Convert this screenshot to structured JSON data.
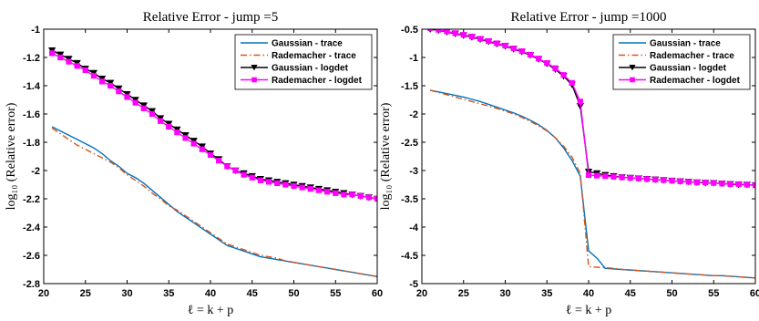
{
  "chart_data": [
    {
      "type": "line",
      "title": "Relative Error - jump =5",
      "xlabel": "ℓ = k + p",
      "ylabel": "log₁₀ (Relative error)",
      "xlim": [
        20,
        60
      ],
      "ylim": [
        -2.8,
        -1
      ],
      "xticks": [
        20,
        25,
        30,
        35,
        40,
        45,
        50,
        55,
        60
      ],
      "xtick_labels": [
        "20",
        "25",
        "30",
        "35",
        "40",
        "45",
        "50",
        "55",
        "60"
      ],
      "yticks": [
        -1,
        -1.2,
        -1.4,
        -1.6,
        -1.8,
        -2,
        -2.2,
        -2.4,
        -2.6,
        -2.8
      ],
      "ytick_labels": [
        "-1",
        "-1.2",
        "-1.4",
        "-1.6",
        "-1.8",
        "-2",
        "-2.2",
        "-2.4",
        "-2.6",
        "-2.8"
      ],
      "grid": false,
      "legend": "top-right",
      "series": [
        {
          "name": "Gaussian - trace",
          "color": "#0072BD",
          "style": "solid",
          "marker": "none",
          "x": [
            21,
            22,
            23,
            24,
            25,
            26,
            27,
            28,
            29,
            30,
            31,
            32,
            33,
            34,
            35,
            36,
            37,
            38,
            39,
            40,
            41,
            42,
            43,
            44,
            45,
            46,
            47,
            48,
            49,
            50,
            51,
            52,
            53,
            54,
            55,
            56,
            57,
            58,
            59,
            60
          ],
          "y": [
            -1.69,
            -1.72,
            -1.75,
            -1.78,
            -1.81,
            -1.84,
            -1.88,
            -1.93,
            -1.97,
            -2.02,
            -2.05,
            -2.09,
            -2.14,
            -2.19,
            -2.24,
            -2.29,
            -2.33,
            -2.37,
            -2.41,
            -2.45,
            -2.49,
            -2.53,
            -2.55,
            -2.57,
            -2.59,
            -2.61,
            -2.62,
            -2.63,
            -2.64,
            -2.65,
            -2.66,
            -2.67,
            -2.68,
            -2.69,
            -2.7,
            -2.71,
            -2.72,
            -2.73,
            -2.74,
            -2.75
          ]
        },
        {
          "name": "Rademacher - trace",
          "color": "#D95319",
          "style": "dashdot",
          "marker": "none",
          "x": [
            21,
            22,
            23,
            24,
            25,
            26,
            27,
            28,
            29,
            30,
            31,
            32,
            33,
            34,
            35,
            36,
            37,
            38,
            39,
            40,
            41,
            42,
            43,
            44,
            45,
            46,
            47,
            48,
            49,
            50,
            51,
            52,
            53,
            54,
            55,
            56,
            57,
            58,
            59,
            60
          ],
          "y": [
            -1.7,
            -1.74,
            -1.78,
            -1.82,
            -1.85,
            -1.88,
            -1.91,
            -1.94,
            -1.98,
            -2.03,
            -2.07,
            -2.11,
            -2.16,
            -2.2,
            -2.25,
            -2.28,
            -2.32,
            -2.36,
            -2.4,
            -2.44,
            -2.48,
            -2.52,
            -2.54,
            -2.56,
            -2.58,
            -2.6,
            -2.61,
            -2.62,
            -2.64,
            -2.65,
            -2.66,
            -2.67,
            -2.68,
            -2.69,
            -2.7,
            -2.71,
            -2.72,
            -2.73,
            -2.74,
            -2.75
          ]
        },
        {
          "name": "Gaussian - logdet",
          "color": "#000000",
          "style": "solid",
          "marker": "triangle-down",
          "x": [
            21,
            22,
            23,
            24,
            25,
            26,
            27,
            28,
            29,
            30,
            31,
            32,
            33,
            34,
            35,
            36,
            37,
            38,
            39,
            40,
            41,
            42,
            43,
            44,
            45,
            46,
            47,
            48,
            49,
            50,
            51,
            52,
            53,
            54,
            55,
            56,
            57,
            58,
            59,
            60
          ],
          "y": [
            -1.15,
            -1.18,
            -1.21,
            -1.24,
            -1.28,
            -1.31,
            -1.35,
            -1.38,
            -1.42,
            -1.46,
            -1.5,
            -1.54,
            -1.58,
            -1.63,
            -1.67,
            -1.71,
            -1.75,
            -1.79,
            -1.83,
            -1.88,
            -1.92,
            -1.97,
            -2.0,
            -2.02,
            -2.04,
            -2.06,
            -2.07,
            -2.08,
            -2.09,
            -2.1,
            -2.11,
            -2.12,
            -2.13,
            -2.14,
            -2.15,
            -2.16,
            -2.17,
            -2.18,
            -2.19,
            -2.2
          ]
        },
        {
          "name": "Rademacher - logdet",
          "color": "#FF00FF",
          "style": "solid",
          "marker": "square",
          "x": [
            21,
            22,
            23,
            24,
            25,
            26,
            27,
            28,
            29,
            30,
            31,
            32,
            33,
            34,
            35,
            36,
            37,
            38,
            39,
            40,
            41,
            42,
            43,
            44,
            45,
            46,
            47,
            48,
            49,
            50,
            51,
            52,
            53,
            54,
            55,
            56,
            57,
            58,
            59,
            60
          ],
          "y": [
            -1.17,
            -1.2,
            -1.23,
            -1.26,
            -1.29,
            -1.33,
            -1.37,
            -1.4,
            -1.44,
            -1.48,
            -1.52,
            -1.56,
            -1.6,
            -1.65,
            -1.69,
            -1.73,
            -1.77,
            -1.81,
            -1.85,
            -1.89,
            -1.93,
            -1.97,
            -2.0,
            -2.03,
            -2.05,
            -2.07,
            -2.08,
            -2.09,
            -2.1,
            -2.11,
            -2.12,
            -2.13,
            -2.14,
            -2.15,
            -2.16,
            -2.17,
            -2.17,
            -2.18,
            -2.19,
            -2.2
          ]
        }
      ]
    },
    {
      "type": "line",
      "title": "Relative Error - jump =1000",
      "xlabel": "ℓ = k + p",
      "ylabel": "log₁₀ (Relative error)",
      "xlim": [
        20,
        60
      ],
      "ylim": [
        -5,
        -0.5
      ],
      "xticks": [
        20,
        25,
        30,
        35,
        40,
        45,
        50,
        55,
        60
      ],
      "xtick_labels": [
        "20",
        "25",
        "30",
        "35",
        "40",
        "45",
        "50",
        "55",
        "60"
      ],
      "yticks": [
        -0.5,
        -1,
        -1.5,
        -2,
        -2.5,
        -3,
        -3.5,
        -4,
        -4.5,
        -5
      ],
      "ytick_labels": [
        "-0.5",
        "-1",
        "-1.5",
        "-2",
        "-2.5",
        "-3",
        "-3.5",
        "-4",
        "-4.5",
        "-5"
      ],
      "grid": false,
      "legend": "top-right",
      "series": [
        {
          "name": "Gaussian - trace",
          "color": "#0072BD",
          "style": "solid",
          "marker": "none",
          "x": [
            21,
            22,
            23,
            24,
            25,
            26,
            27,
            28,
            29,
            30,
            31,
            32,
            33,
            34,
            35,
            36,
            37,
            38,
            39,
            40,
            41,
            42,
            43,
            44,
            45,
            46,
            47,
            48,
            49,
            50,
            51,
            52,
            53,
            54,
            55,
            56,
            57,
            58,
            59,
            60
          ],
          "y": [
            -1.58,
            -1.61,
            -1.64,
            -1.67,
            -1.7,
            -1.74,
            -1.78,
            -1.83,
            -1.88,
            -1.93,
            -1.98,
            -2.04,
            -2.11,
            -2.19,
            -2.29,
            -2.42,
            -2.6,
            -2.82,
            -3.1,
            -4.42,
            -4.55,
            -4.73,
            -4.74,
            -4.75,
            -4.76,
            -4.77,
            -4.78,
            -4.79,
            -4.8,
            -4.81,
            -4.82,
            -4.83,
            -4.84,
            -4.85,
            -4.86,
            -4.86,
            -4.87,
            -4.88,
            -4.89,
            -4.9
          ]
        },
        {
          "name": "Rademacher - trace",
          "color": "#D95319",
          "style": "dashdot",
          "marker": "none",
          "x": [
            21,
            22,
            23,
            24,
            25,
            26,
            27,
            28,
            29,
            30,
            31,
            32,
            33,
            34,
            35,
            36,
            37,
            38,
            39,
            40,
            41,
            42,
            43,
            44,
            45,
            46,
            47,
            48,
            49,
            50,
            51,
            52,
            53,
            54,
            55,
            56,
            57,
            58,
            59,
            60
          ],
          "y": [
            -1.58,
            -1.62,
            -1.66,
            -1.7,
            -1.74,
            -1.78,
            -1.82,
            -1.86,
            -1.9,
            -1.95,
            -2.0,
            -2.06,
            -2.13,
            -2.21,
            -2.3,
            -2.42,
            -2.57,
            -2.76,
            -3.05,
            -4.7,
            -4.71,
            -4.72,
            -4.73,
            -4.75,
            -4.76,
            -4.77,
            -4.78,
            -4.79,
            -4.8,
            -4.81,
            -4.82,
            -4.83,
            -4.84,
            -4.85,
            -4.86,
            -4.86,
            -4.87,
            -4.88,
            -4.89,
            -4.9
          ]
        },
        {
          "name": "Gaussian - logdet",
          "color": "#000000",
          "style": "solid",
          "marker": "triangle-down",
          "x": [
            21,
            22,
            23,
            24,
            25,
            26,
            27,
            28,
            29,
            30,
            31,
            32,
            33,
            34,
            35,
            36,
            37,
            38,
            39,
            40,
            41,
            42,
            43,
            44,
            45,
            46,
            47,
            48,
            49,
            50,
            51,
            52,
            53,
            54,
            55,
            56,
            57,
            58,
            59,
            60
          ],
          "y": [
            -0.5,
            -0.52,
            -0.55,
            -0.58,
            -0.61,
            -0.64,
            -0.68,
            -0.72,
            -0.76,
            -0.8,
            -0.85,
            -0.9,
            -0.96,
            -1.03,
            -1.11,
            -1.21,
            -1.33,
            -1.48,
            -1.86,
            -3.02,
            -3.05,
            -3.08,
            -3.1,
            -3.12,
            -3.13,
            -3.14,
            -3.15,
            -3.16,
            -3.17,
            -3.18,
            -3.19,
            -3.2,
            -3.21,
            -3.22,
            -3.22,
            -3.23,
            -3.24,
            -3.25,
            -3.25,
            -3.26
          ]
        },
        {
          "name": "Rademacher - logdet",
          "color": "#FF00FF",
          "style": "solid",
          "marker": "square",
          "x": [
            21,
            22,
            23,
            24,
            25,
            26,
            27,
            28,
            29,
            30,
            31,
            32,
            33,
            34,
            35,
            36,
            37,
            38,
            39,
            40,
            41,
            42,
            43,
            44,
            45,
            46,
            47,
            48,
            49,
            50,
            51,
            52,
            53,
            54,
            55,
            56,
            57,
            58,
            59,
            60
          ],
          "y": [
            -0.48,
            -0.51,
            -0.54,
            -0.57,
            -0.6,
            -0.63,
            -0.67,
            -0.71,
            -0.75,
            -0.79,
            -0.84,
            -0.89,
            -0.95,
            -1.02,
            -1.1,
            -1.19,
            -1.31,
            -1.45,
            -1.78,
            -3.08,
            -3.09,
            -3.1,
            -3.11,
            -3.12,
            -3.13,
            -3.14,
            -3.15,
            -3.16,
            -3.17,
            -3.18,
            -3.19,
            -3.2,
            -3.21,
            -3.21,
            -3.22,
            -3.23,
            -3.24,
            -3.24,
            -3.25,
            -3.26
          ]
        }
      ]
    }
  ]
}
